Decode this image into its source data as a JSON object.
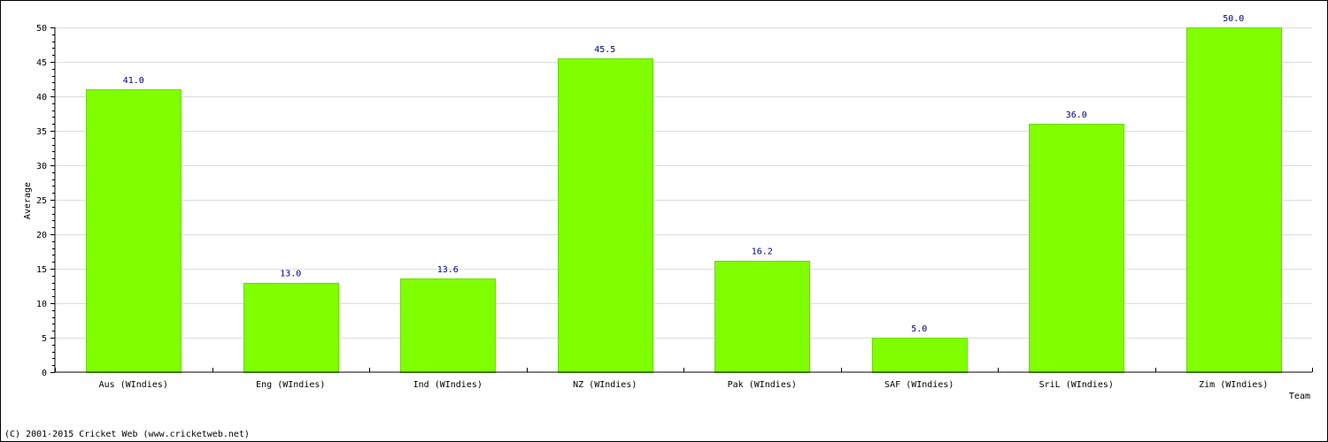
{
  "chart_data": {
    "type": "bar",
    "categories": [
      "Aus (WIndies)",
      "Eng (WIndies)",
      "Ind (WIndies)",
      "NZ (WIndies)",
      "Pak (WIndies)",
      "SAF (WIndies)",
      "SriL (WIndies)",
      "Zim (WIndies)"
    ],
    "values": [
      41.0,
      13.0,
      13.6,
      45.5,
      16.2,
      5.0,
      36.0,
      50.0
    ],
    "value_labels": [
      "41.0",
      "13.0",
      "13.6",
      "45.5",
      "16.2",
      "5.0",
      "36.0",
      "50.0"
    ],
    "xlabel": "Team",
    "ylabel": "Average",
    "ylim": [
      0,
      50
    ],
    "yticks": [
      0,
      5,
      10,
      15,
      20,
      25,
      30,
      35,
      40,
      45,
      50
    ],
    "grid": true,
    "bar_color": "#80ff00",
    "value_label_color": "#000080"
  },
  "footer": {
    "copyright": "(C) 2001-2015 Cricket Web (www.cricketweb.net)"
  }
}
